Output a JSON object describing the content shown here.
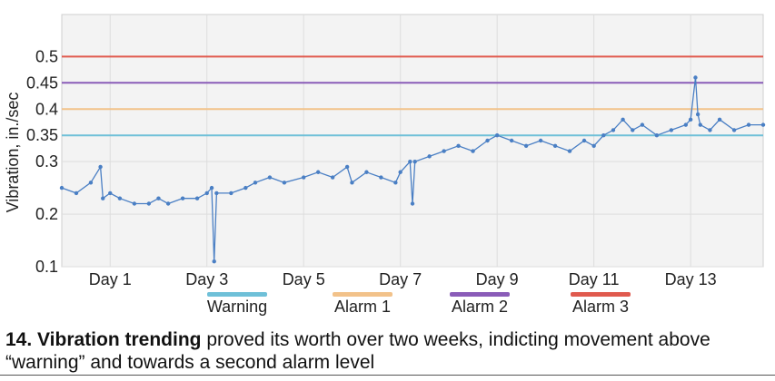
{
  "chart_data": {
    "type": "line",
    "title": "",
    "xlabel": "",
    "ylabel": "Vibration, in./sec",
    "xlim": [
      0,
      14.5
    ],
    "ylim": [
      0.1,
      0.58
    ],
    "yticks": [
      0.1,
      0.2,
      0.3,
      0.35,
      0.4,
      0.45,
      0.5
    ],
    "ytick_labels": [
      "0.1",
      "0.2",
      "0.3",
      "0.35",
      "0.4",
      "0.45",
      "0.5"
    ],
    "xticks": [
      1,
      3,
      5,
      7,
      9,
      11,
      13
    ],
    "xtick_labels": [
      "Day 1",
      "Day 3",
      "Day 5",
      "Day 7",
      "Day 9",
      "Day 11",
      "Day 13"
    ],
    "grid": true,
    "thresholds": [
      {
        "name": "Warning",
        "value": 0.35,
        "color": "#6fc0d8"
      },
      {
        "name": "Alarm 1",
        "value": 0.4,
        "color": "#f2c28a"
      },
      {
        "name": "Alarm 2",
        "value": 0.45,
        "color": "#8a5cb8"
      },
      {
        "name": "Alarm 3",
        "value": 0.5,
        "color": "#e05a4e"
      }
    ],
    "series": [
      {
        "color": "#4a7fc4",
        "x": [
          0.0,
          0.3,
          0.6,
          0.8,
          0.85,
          1.0,
          1.2,
          1.5,
          1.8,
          2.0,
          2.2,
          2.5,
          2.8,
          3.0,
          3.1,
          3.15,
          3.2,
          3.5,
          3.8,
          4.0,
          4.3,
          4.6,
          5.0,
          5.3,
          5.6,
          5.9,
          6.0,
          6.3,
          6.6,
          6.9,
          7.0,
          7.2,
          7.25,
          7.3,
          7.6,
          7.9,
          8.2,
          8.5,
          8.8,
          9.0,
          9.3,
          9.6,
          9.9,
          10.2,
          10.5,
          10.8,
          11.0,
          11.2,
          11.4,
          11.6,
          11.8,
          12.0,
          12.3,
          12.6,
          12.9,
          13.0,
          13.1,
          13.15,
          13.2,
          13.4,
          13.6,
          13.9,
          14.2,
          14.5
        ],
        "y": [
          0.25,
          0.24,
          0.26,
          0.29,
          0.23,
          0.24,
          0.23,
          0.22,
          0.22,
          0.23,
          0.22,
          0.23,
          0.23,
          0.24,
          0.25,
          0.11,
          0.24,
          0.24,
          0.25,
          0.26,
          0.27,
          0.26,
          0.27,
          0.28,
          0.27,
          0.29,
          0.26,
          0.28,
          0.27,
          0.26,
          0.28,
          0.3,
          0.22,
          0.3,
          0.31,
          0.32,
          0.33,
          0.32,
          0.34,
          0.35,
          0.34,
          0.33,
          0.34,
          0.33,
          0.32,
          0.34,
          0.33,
          0.35,
          0.36,
          0.38,
          0.36,
          0.37,
          0.35,
          0.36,
          0.37,
          0.38,
          0.46,
          0.39,
          0.37,
          0.36,
          0.38,
          0.36,
          0.37,
          0.37
        ]
      }
    ]
  },
  "legend": [
    {
      "label": "Warning",
      "color": "#6fc0d8"
    },
    {
      "label": "Alarm 1",
      "color": "#f2c28a"
    },
    {
      "label": "Alarm 2",
      "color": "#8a5cb8"
    },
    {
      "label": "Alarm 3",
      "color": "#e05a4e"
    }
  ],
  "caption": {
    "number": "14.",
    "bold": "Vibration trending",
    "rest": "proved its worth over two weeks, indicting movement above “warning” and towards a second alarm level"
  }
}
